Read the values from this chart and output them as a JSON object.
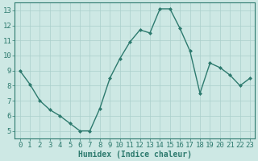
{
  "x": [
    0,
    1,
    2,
    3,
    4,
    5,
    6,
    7,
    8,
    9,
    10,
    11,
    12,
    13,
    14,
    15,
    16,
    17,
    18,
    19,
    20,
    21,
    22,
    23
  ],
  "y": [
    9.0,
    8.1,
    7.0,
    6.4,
    6.0,
    5.5,
    5.0,
    5.0,
    6.5,
    8.5,
    9.8,
    10.9,
    11.7,
    11.5,
    13.1,
    13.1,
    11.8,
    10.3,
    7.5,
    9.5,
    9.2,
    8.7,
    8.0,
    8.5
  ],
  "xlabel": "Humidex (Indice chaleur)",
  "ylim": [
    4.5,
    13.5
  ],
  "xlim": [
    -0.5,
    23.5
  ],
  "yticks": [
    5,
    6,
    7,
    8,
    9,
    10,
    11,
    12,
    13
  ],
  "xticks": [
    0,
    1,
    2,
    3,
    4,
    5,
    6,
    7,
    8,
    9,
    10,
    11,
    12,
    13,
    14,
    15,
    16,
    17,
    18,
    19,
    20,
    21,
    22,
    23
  ],
  "line_color": "#2d7a6e",
  "marker": "D",
  "marker_size": 2.0,
  "bg_color": "#cde8e4",
  "grid_color": "#aacfcb",
  "tick_color": "#2d7a6e",
  "label_color": "#2d7a6e",
  "xlabel_fontsize": 7,
  "tick_fontsize": 6.5,
  "linewidth": 1.0
}
